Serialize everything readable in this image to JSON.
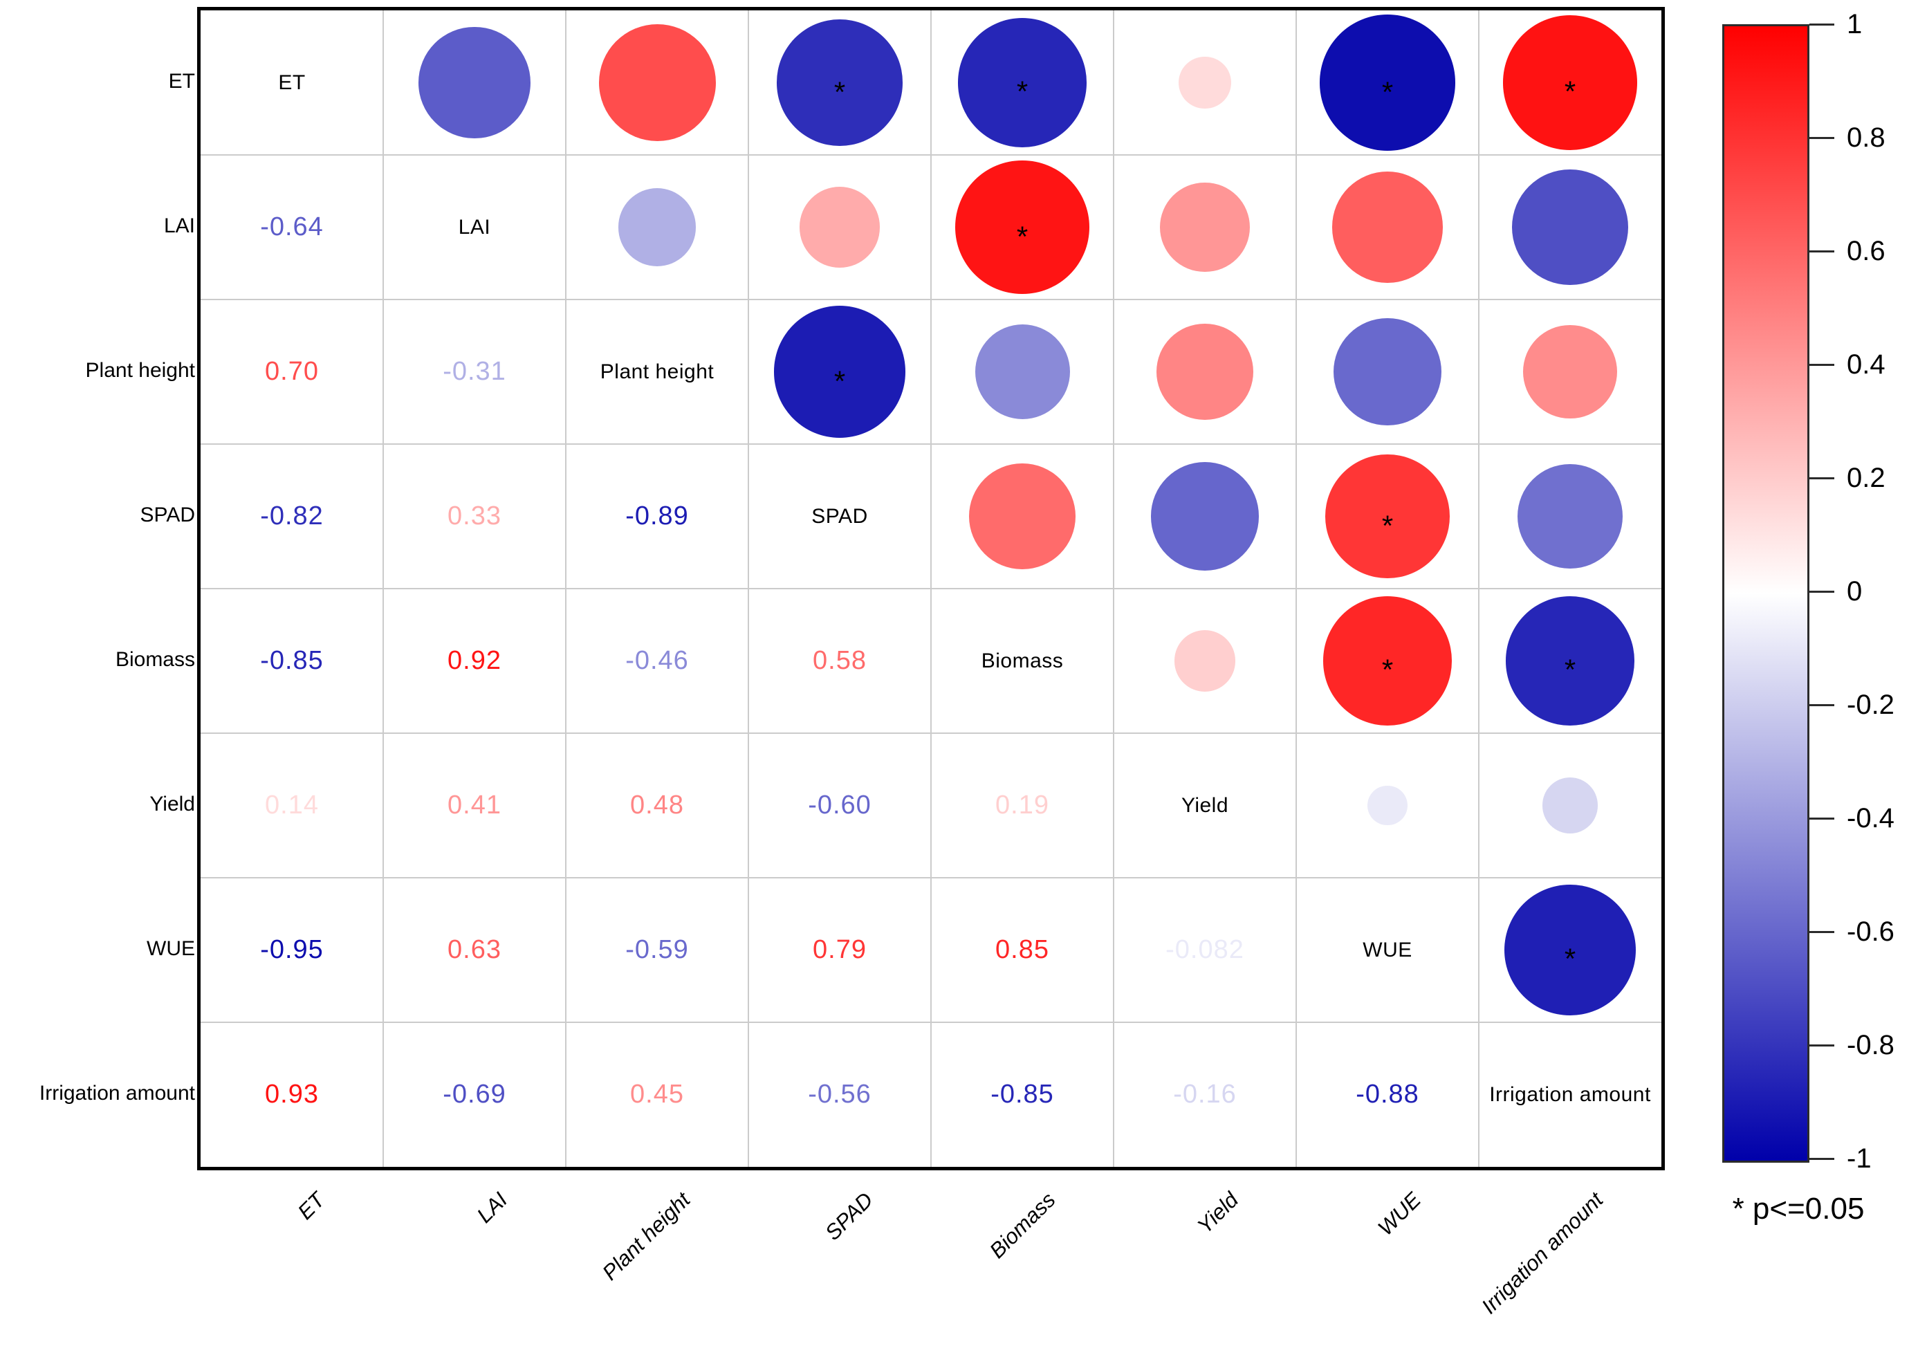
{
  "chart_data": {
    "type": "heatmap",
    "subtype": "correlation-matrix-bubble",
    "title": "",
    "variables": [
      "ET",
      "LAI",
      "Plant height",
      "SPAD",
      "Biomass",
      "Yield",
      "WUE",
      "Irrigation amount"
    ],
    "diagonal_labels": [
      "ET",
      "LAI",
      "Plant height",
      "SPAD",
      "Biomass",
      "Yield",
      "WUE",
      "Irrigation amount"
    ],
    "y_axis_labels": [
      "ET",
      "LAI",
      "Plant height",
      "SPAD",
      "Biomass",
      "Yield",
      "WUE",
      "Irrigation amount"
    ],
    "x_axis_labels": [
      "ET",
      "LAI",
      "Plant height",
      "SPAD",
      "Biomass",
      "Yield",
      "WUE",
      "Irrigation amount"
    ],
    "lower_triangle_shows": "correlation coefficient number",
    "upper_triangle_shows": "circle with area proportional to |r|, colored by colormap, asterisk if significant",
    "pairs": [
      {
        "i": 0,
        "j": 1,
        "r": -0.64,
        "display": "-0.64",
        "significant": false
      },
      {
        "i": 0,
        "j": 2,
        "r": 0.7,
        "display": "0.70",
        "significant": false
      },
      {
        "i": 0,
        "j": 3,
        "r": -0.82,
        "display": "-0.82",
        "significant": true
      },
      {
        "i": 0,
        "j": 4,
        "r": -0.85,
        "display": "-0.85",
        "significant": true
      },
      {
        "i": 0,
        "j": 5,
        "r": 0.14,
        "display": "0.14",
        "significant": false
      },
      {
        "i": 0,
        "j": 6,
        "r": -0.95,
        "display": "-0.95",
        "significant": true
      },
      {
        "i": 0,
        "j": 7,
        "r": 0.93,
        "display": "0.93",
        "significant": true
      },
      {
        "i": 1,
        "j": 2,
        "r": -0.31,
        "display": "-0.31",
        "significant": false
      },
      {
        "i": 1,
        "j": 3,
        "r": 0.33,
        "display": "0.33",
        "significant": false
      },
      {
        "i": 1,
        "j": 4,
        "r": 0.92,
        "display": "0.92",
        "significant": true
      },
      {
        "i": 1,
        "j": 5,
        "r": 0.41,
        "display": "0.41",
        "significant": false
      },
      {
        "i": 1,
        "j": 6,
        "r": 0.63,
        "display": "0.63",
        "significant": false
      },
      {
        "i": 1,
        "j": 7,
        "r": -0.69,
        "display": "-0.69",
        "significant": false
      },
      {
        "i": 2,
        "j": 3,
        "r": -0.89,
        "display": "-0.89",
        "significant": true
      },
      {
        "i": 2,
        "j": 4,
        "r": -0.46,
        "display": "-0.46",
        "significant": false
      },
      {
        "i": 2,
        "j": 5,
        "r": 0.48,
        "display": "0.48",
        "significant": false
      },
      {
        "i": 2,
        "j": 6,
        "r": -0.59,
        "display": "-0.59",
        "significant": false
      },
      {
        "i": 2,
        "j": 7,
        "r": 0.45,
        "display": "0.45",
        "significant": false
      },
      {
        "i": 3,
        "j": 4,
        "r": 0.58,
        "display": "0.58",
        "significant": false
      },
      {
        "i": 3,
        "j": 5,
        "r": -0.6,
        "display": "-0.60",
        "significant": false
      },
      {
        "i": 3,
        "j": 6,
        "r": 0.79,
        "display": "0.79",
        "significant": true
      },
      {
        "i": 3,
        "j": 7,
        "r": -0.56,
        "display": "-0.56",
        "significant": false
      },
      {
        "i": 4,
        "j": 5,
        "r": 0.19,
        "display": "0.19",
        "significant": false
      },
      {
        "i": 4,
        "j": 6,
        "r": 0.85,
        "display": "0.85",
        "significant": true
      },
      {
        "i": 4,
        "j": 7,
        "r": -0.85,
        "display": "-0.85",
        "significant": true
      },
      {
        "i": 5,
        "j": 6,
        "r": -0.082,
        "display": "-0.082",
        "significant": false
      },
      {
        "i": 5,
        "j": 7,
        "r": -0.16,
        "display": "-0.16",
        "significant": false
      },
      {
        "i": 6,
        "j": 7,
        "r": -0.88,
        "display": "-0.88",
        "significant": true
      }
    ],
    "colorbar": {
      "ticks": [
        "1",
        "0.8",
        "0.6",
        "0.4",
        "0.2",
        "0",
        "-0.2",
        "-0.4",
        "-0.6",
        "-0.8",
        "-1"
      ],
      "range": [
        -1,
        1
      ],
      "max_color": "#FF0000",
      "mid_color": "#FFFFFF",
      "min_color": "#0000AA",
      "note": "* p<=0.05"
    }
  }
}
